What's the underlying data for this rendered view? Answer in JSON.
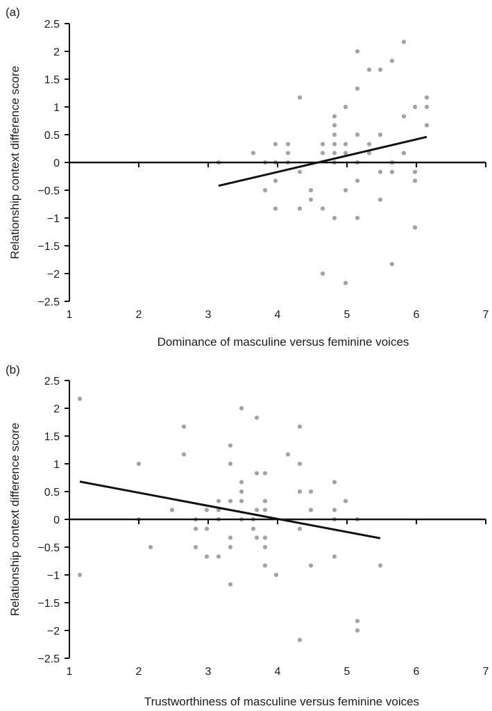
{
  "chart_data": [
    {
      "panel_label": "(a)",
      "type": "scatter",
      "xlabel": "Dominance of masculine versus feminine voices",
      "ylabel": "Relationship context difference score",
      "xlim": [
        1,
        7
      ],
      "ylim": [
        -2.5,
        2.5
      ],
      "xticks": [
        1,
        2,
        3,
        4,
        5,
        6,
        7
      ],
      "yticks": [
        2.5,
        2,
        1.5,
        1,
        0.5,
        0,
        -0.5,
        -1,
        -1.5,
        -2,
        -2.5
      ],
      "ytick_labels": [
        "2.5",
        "2",
        "1.5",
        "1",
        "0.5",
        "0",
        "−0.5",
        "−1",
        "−1.5",
        "−2",
        "−2.5"
      ],
      "grid": false,
      "points": [
        [
          3.15,
          0
        ],
        [
          3.65,
          0.17
        ],
        [
          3.82,
          0
        ],
        [
          3.82,
          -0.5
        ],
        [
          3.97,
          0.33
        ],
        [
          3.97,
          0
        ],
        [
          3.97,
          -0.33
        ],
        [
          3.97,
          -0.83
        ],
        [
          4.15,
          0.33
        ],
        [
          4.15,
          0.17
        ],
        [
          4.15,
          0
        ],
        [
          4.32,
          1.17
        ],
        [
          4.32,
          -0.17
        ],
        [
          4.32,
          -0.83
        ],
        [
          4.48,
          -0.5
        ],
        [
          4.48,
          -0.67
        ],
        [
          4.65,
          0.33
        ],
        [
          4.65,
          0.17
        ],
        [
          4.65,
          -0.83
        ],
        [
          4.65,
          -2.0
        ],
        [
          4.82,
          0.83
        ],
        [
          4.82,
          0.67
        ],
        [
          4.82,
          0.5
        ],
        [
          4.82,
          0.33
        ],
        [
          4.82,
          0.17
        ],
        [
          4.82,
          0
        ],
        [
          4.82,
          -1.0
        ],
        [
          4.98,
          1.0
        ],
        [
          4.98,
          0.33
        ],
        [
          4.98,
          0.17
        ],
        [
          4.98,
          -0.5
        ],
        [
          4.98,
          -2.17
        ],
        [
          5.15,
          2.0
        ],
        [
          5.15,
          1.33
        ],
        [
          5.15,
          0.5
        ],
        [
          5.15,
          0
        ],
        [
          5.15,
          -0.33
        ],
        [
          5.15,
          -1.0
        ],
        [
          5.32,
          1.67
        ],
        [
          5.32,
          0.33
        ],
        [
          5.32,
          0.17
        ],
        [
          5.48,
          1.67
        ],
        [
          5.48,
          0.5
        ],
        [
          5.48,
          -0.17
        ],
        [
          5.48,
          -0.67
        ],
        [
          5.65,
          1.83
        ],
        [
          5.65,
          0
        ],
        [
          5.65,
          -0.17
        ],
        [
          5.65,
          -1.83
        ],
        [
          5.82,
          2.17
        ],
        [
          5.82,
          0.83
        ],
        [
          5.82,
          0.17
        ],
        [
          5.98,
          1.0
        ],
        [
          5.98,
          -0.17
        ],
        [
          5.98,
          -0.33
        ],
        [
          5.98,
          -1.17
        ],
        [
          6.15,
          1.17
        ],
        [
          6.15,
          1.0
        ],
        [
          6.15,
          0.67
        ]
      ],
      "trend_line": {
        "x": [
          3.15,
          6.15
        ],
        "y": [
          -0.42,
          0.46
        ]
      }
    },
    {
      "panel_label": "(b)",
      "type": "scatter",
      "xlabel": "Trustworthiness of masculine versus feminine voices",
      "ylabel": "Relationship context difference score",
      "xlim": [
        1,
        7
      ],
      "ylim": [
        -2.5,
        2.5
      ],
      "xticks": [
        1,
        2,
        3,
        4,
        5,
        6,
        7
      ],
      "yticks": [
        2.5,
        2,
        1.5,
        1,
        0.5,
        0,
        -0.5,
        -1,
        -1.5,
        -2,
        -2.5
      ],
      "ytick_labels": [
        "2.5",
        "2",
        "1.5",
        "1",
        "0.5",
        "0",
        "−0.5",
        "−1",
        "−1.5",
        "−2",
        "−2.5"
      ],
      "grid": false,
      "points": [
        [
          1.15,
          2.17
        ],
        [
          1.15,
          -1.0
        ],
        [
          2.0,
          1.0
        ],
        [
          2.0,
          0
        ],
        [
          2.17,
          -0.5
        ],
        [
          2.48,
          0.17
        ],
        [
          2.65,
          1.67
        ],
        [
          2.65,
          1.17
        ],
        [
          2.82,
          0
        ],
        [
          2.82,
          -0.17
        ],
        [
          2.82,
          -0.5
        ],
        [
          2.98,
          0.17
        ],
        [
          2.98,
          -0.17
        ],
        [
          2.98,
          -0.67
        ],
        [
          3.15,
          0.33
        ],
        [
          3.15,
          0.17
        ],
        [
          3.15,
          0
        ],
        [
          3.15,
          -0.67
        ],
        [
          3.32,
          1.33
        ],
        [
          3.32,
          1.0
        ],
        [
          3.32,
          0.33
        ],
        [
          3.32,
          -0.33
        ],
        [
          3.32,
          -0.5
        ],
        [
          3.32,
          -1.17
        ],
        [
          3.48,
          2.0
        ],
        [
          3.48,
          0.67
        ],
        [
          3.48,
          0.5
        ],
        [
          3.48,
          0.33
        ],
        [
          3.48,
          0
        ],
        [
          3.65,
          0
        ],
        [
          3.65,
          -0.17
        ],
        [
          3.7,
          1.83
        ],
        [
          3.7,
          0.83
        ],
        [
          3.7,
          0.17
        ],
        [
          3.7,
          -0.33
        ],
        [
          3.82,
          0.83
        ],
        [
          3.82,
          0.33
        ],
        [
          3.82,
          0.17
        ],
        [
          3.82,
          -0.33
        ],
        [
          3.82,
          -0.5
        ],
        [
          3.82,
          -0.83
        ],
        [
          3.98,
          -1.0
        ],
        [
          4.15,
          1.17
        ],
        [
          4.32,
          1.67
        ],
        [
          4.32,
          1.0
        ],
        [
          4.32,
          0.5
        ],
        [
          4.32,
          -0.17
        ],
        [
          4.32,
          -2.17
        ],
        [
          4.48,
          0.5
        ],
        [
          4.48,
          0.17
        ],
        [
          4.48,
          -0.83
        ],
        [
          4.82,
          0.67
        ],
        [
          4.82,
          0.17
        ],
        [
          4.82,
          0
        ],
        [
          4.82,
          -0.67
        ],
        [
          4.98,
          0.33
        ],
        [
          5.15,
          0
        ],
        [
          5.15,
          -1.83
        ],
        [
          5.15,
          -2.0
        ],
        [
          5.48,
          -0.83
        ]
      ],
      "trend_line": {
        "x": [
          1.15,
          5.48
        ],
        "y": [
          0.68,
          -0.34
        ]
      }
    }
  ]
}
